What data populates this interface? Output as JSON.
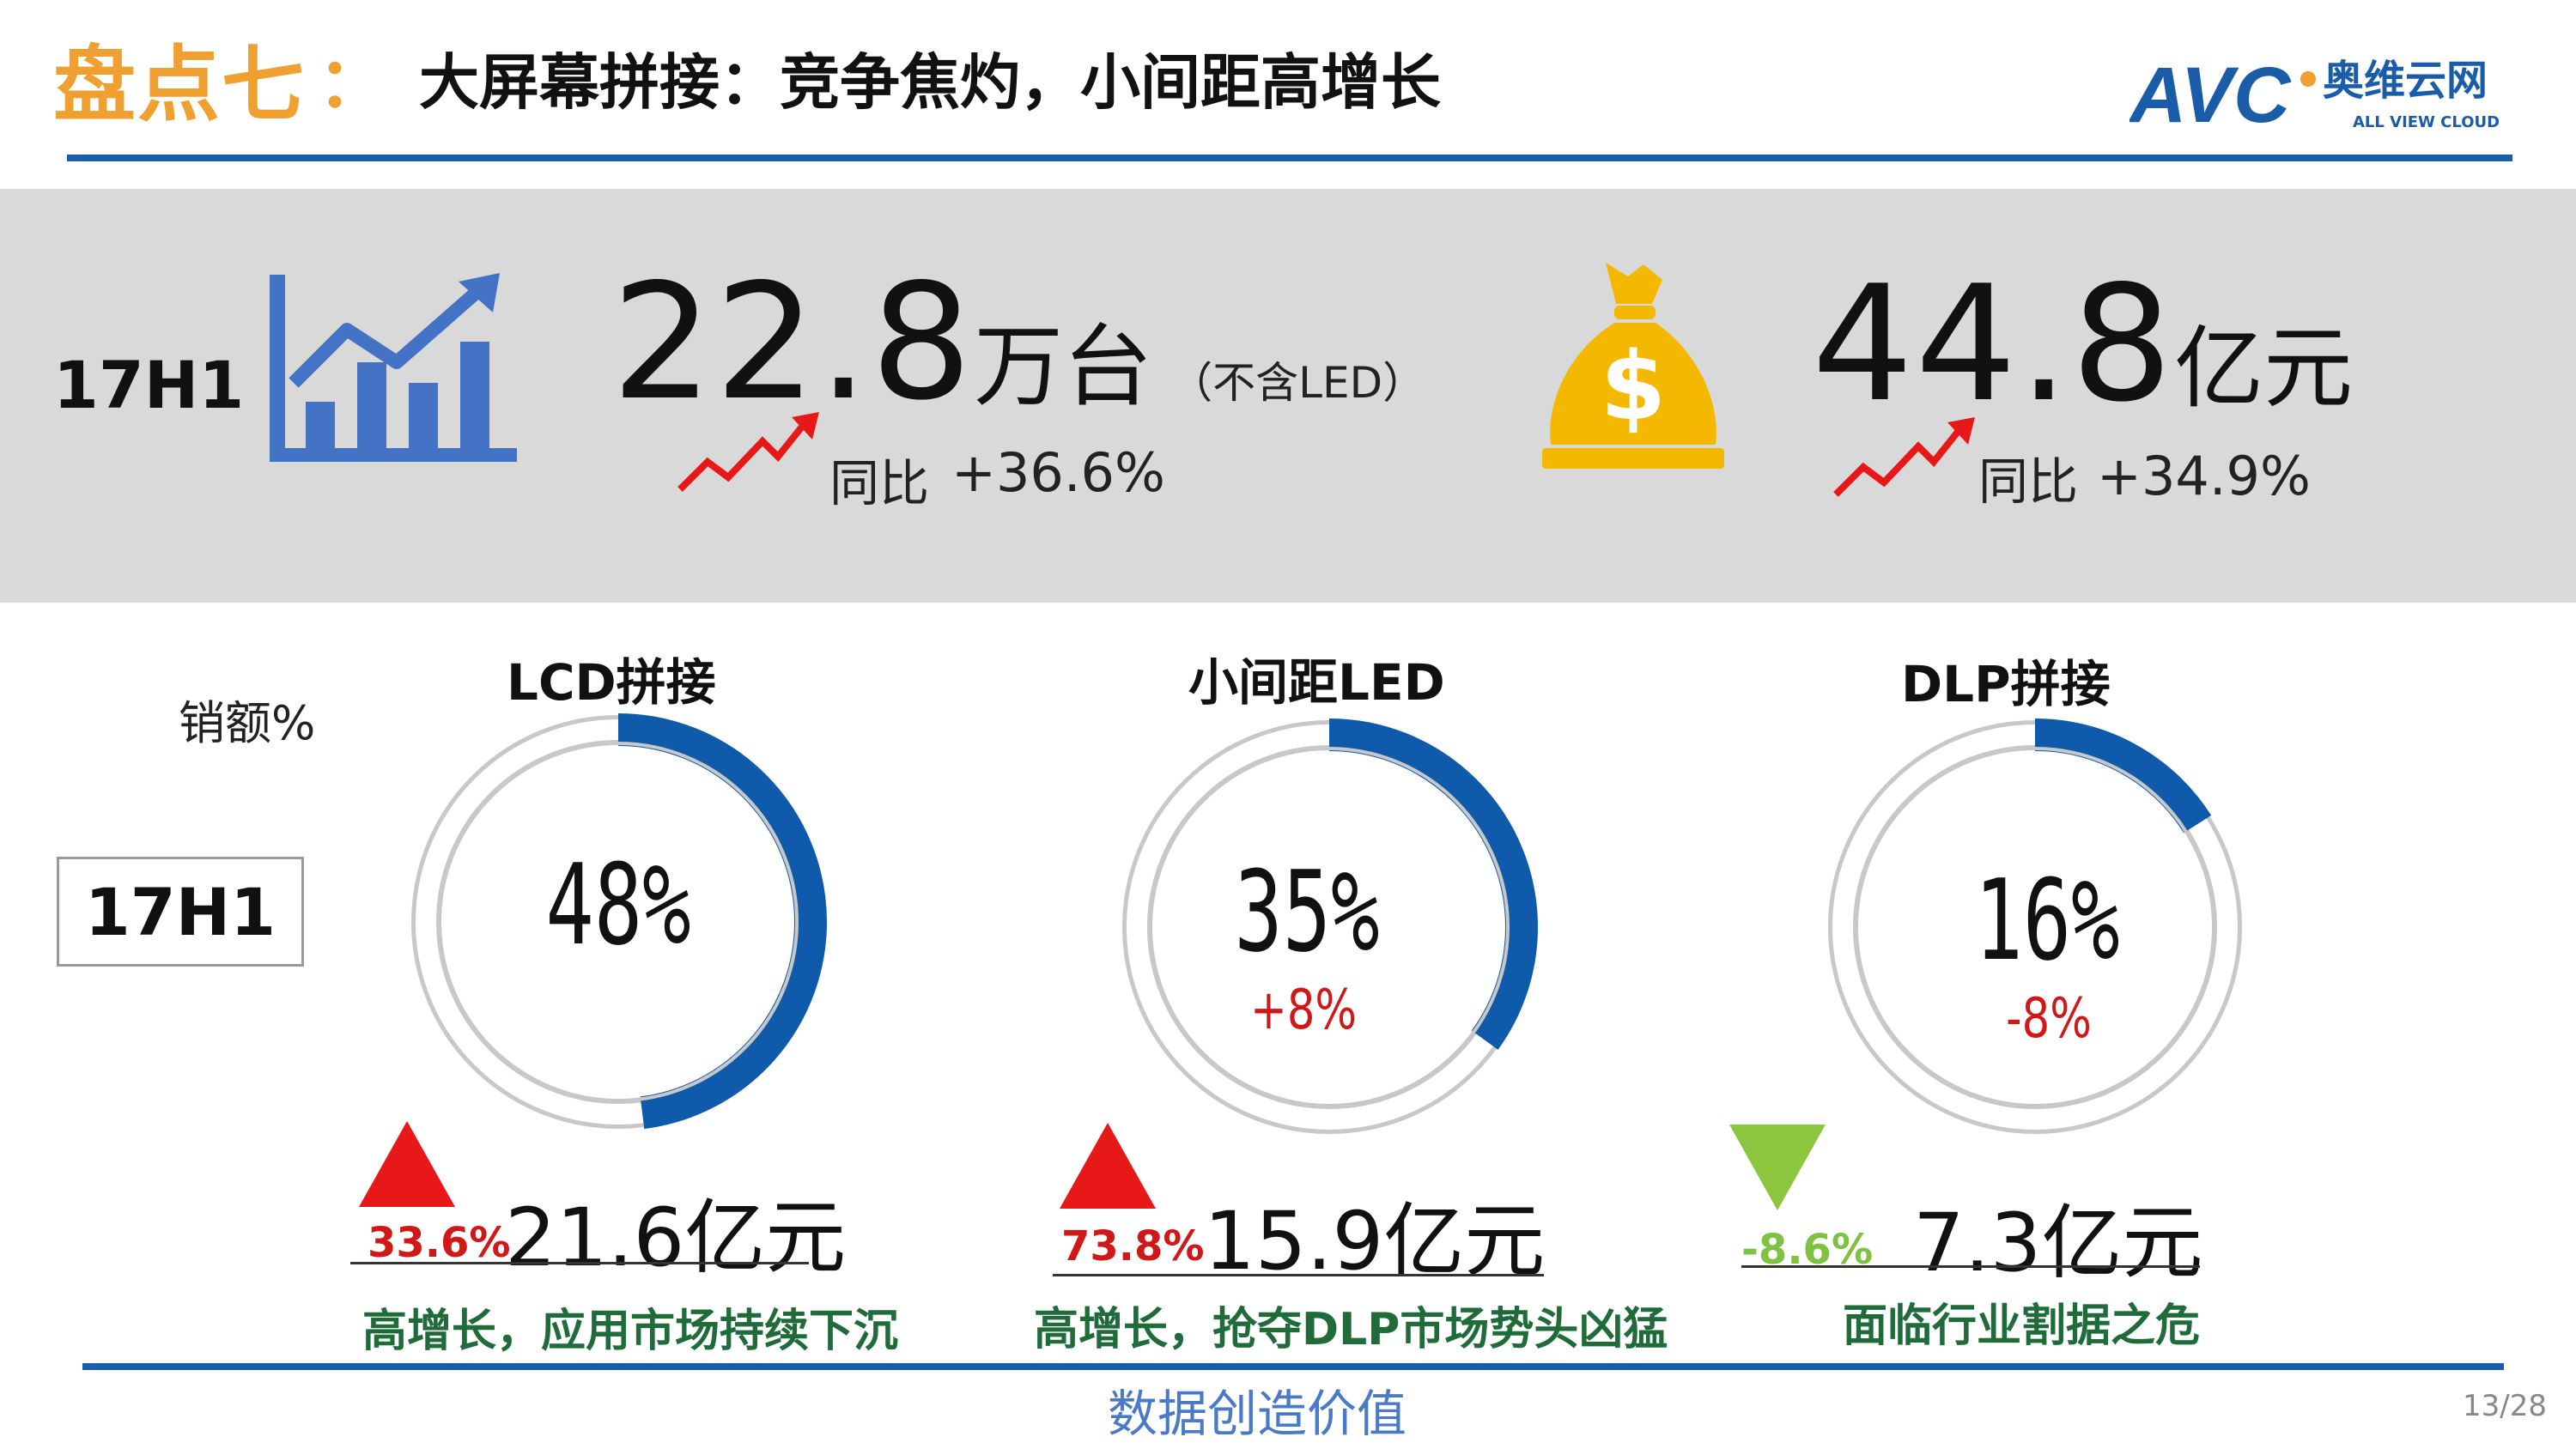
{
  "header": {
    "title_prefix": "盘点七",
    "title_colon": "：",
    "title_main": "大屏幕拼接：竞争焦灼，小间距高增长",
    "logo": {
      "letters": "AVC",
      "cn_name": "奥维云网",
      "en_name": "ALL VIEW CLOUD"
    }
  },
  "summary": {
    "period": "17H1",
    "units": {
      "value": "22.8",
      "unit": "万台",
      "note": "（不含LED）",
      "yoy_label": "同比",
      "yoy_value": "+36.6%",
      "icon": "bar-growth-chart-icon"
    },
    "revenue": {
      "value": "44.8",
      "unit": "亿元",
      "yoy_label": "同比",
      "yoy_value": "+34.9%",
      "icon": "money-bag-icon"
    }
  },
  "segments": {
    "metric_label": "销额%",
    "period": "17H1",
    "items": [
      {
        "title": "LCD拼接",
        "share": 48,
        "share_label": "48%",
        "change": "",
        "growth": "33.6%",
        "growth_dir": "up",
        "revenue": "21.6亿元",
        "desc": "高增长，应用市场持续下沉"
      },
      {
        "title": "小间距LED",
        "share": 35,
        "share_label": "35%",
        "change": "+8%",
        "growth": "73.8%",
        "growth_dir": "up",
        "revenue": "15.9亿元",
        "desc": "高增长，抢夺DLP市场势头凶猛"
      },
      {
        "title": "DLP拼接",
        "share": 16,
        "share_label": "16%",
        "change": "-8%",
        "growth": "-8.6%",
        "growth_dir": "down",
        "revenue": "7.3亿元",
        "desc": "面临行业割据之危"
      }
    ]
  },
  "footer": {
    "text": "数据创造价值",
    "page": "13/28"
  },
  "colors": {
    "accent_orange": "#f0a030",
    "brand_blue": "#1a5ca8",
    "icon_blue": "#4472c4",
    "up_red": "#e81818",
    "down_green": "#8cc63f",
    "desc_green": "#1f6b3a",
    "bag_gold": "#f5b800"
  }
}
